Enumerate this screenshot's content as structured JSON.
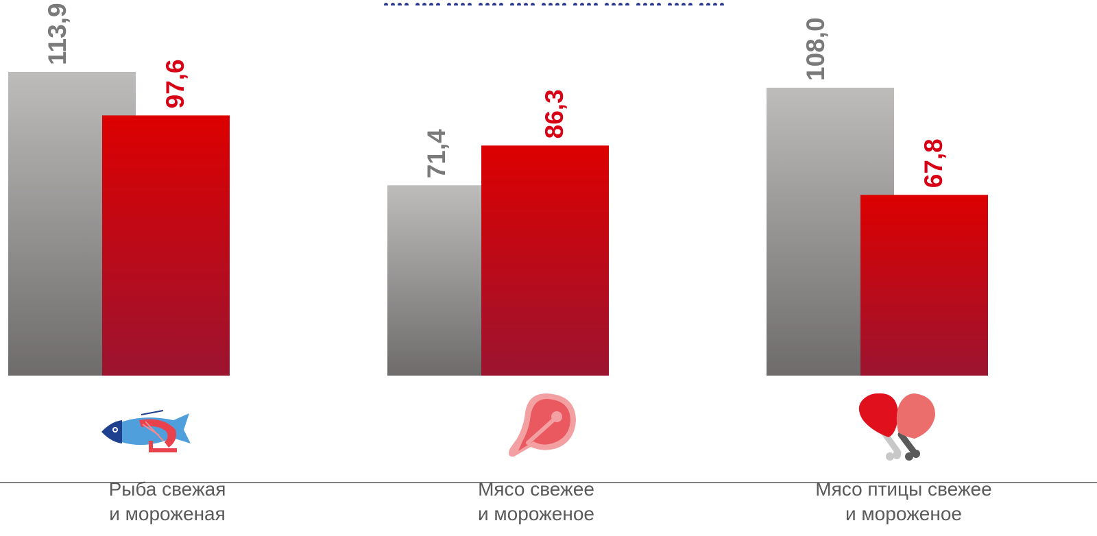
{
  "chart_data": {
    "type": "bar",
    "categories": [
      [
        "Рыба свежая",
        "и мороженая"
      ],
      [
        "Мясо свежее",
        "и мороженое"
      ],
      [
        "Мясо  птицы свежее",
        "и мороженое"
      ]
    ],
    "icons": [
      "fish-shrimp-icon",
      "steak-icon",
      "chicken-drumstick-icon"
    ],
    "series": [
      {
        "values": [
          113.9,
          71.4,
          108.0
        ],
        "labels": [
          "113,9",
          "71,4",
          "108,0"
        ],
        "color": "#7a7a7a"
      },
      {
        "values": [
          97.6,
          86.3,
          67.8
        ],
        "labels": [
          "97,6",
          "86,3",
          "67,8"
        ],
        "color": "#d70015"
      }
    ],
    "ylim": [
      0,
      113.9
    ],
    "colors": {
      "grey_top": "#bdbcbb",
      "grey_bottom": "#6e6b6b",
      "red_top": "#dc0000",
      "red_bottom": "#9c1430",
      "grey_label": "#7a7a7a",
      "red_label": "#d70015",
      "axis": "#808080",
      "category_text": "#5a5a5a"
    }
  }
}
